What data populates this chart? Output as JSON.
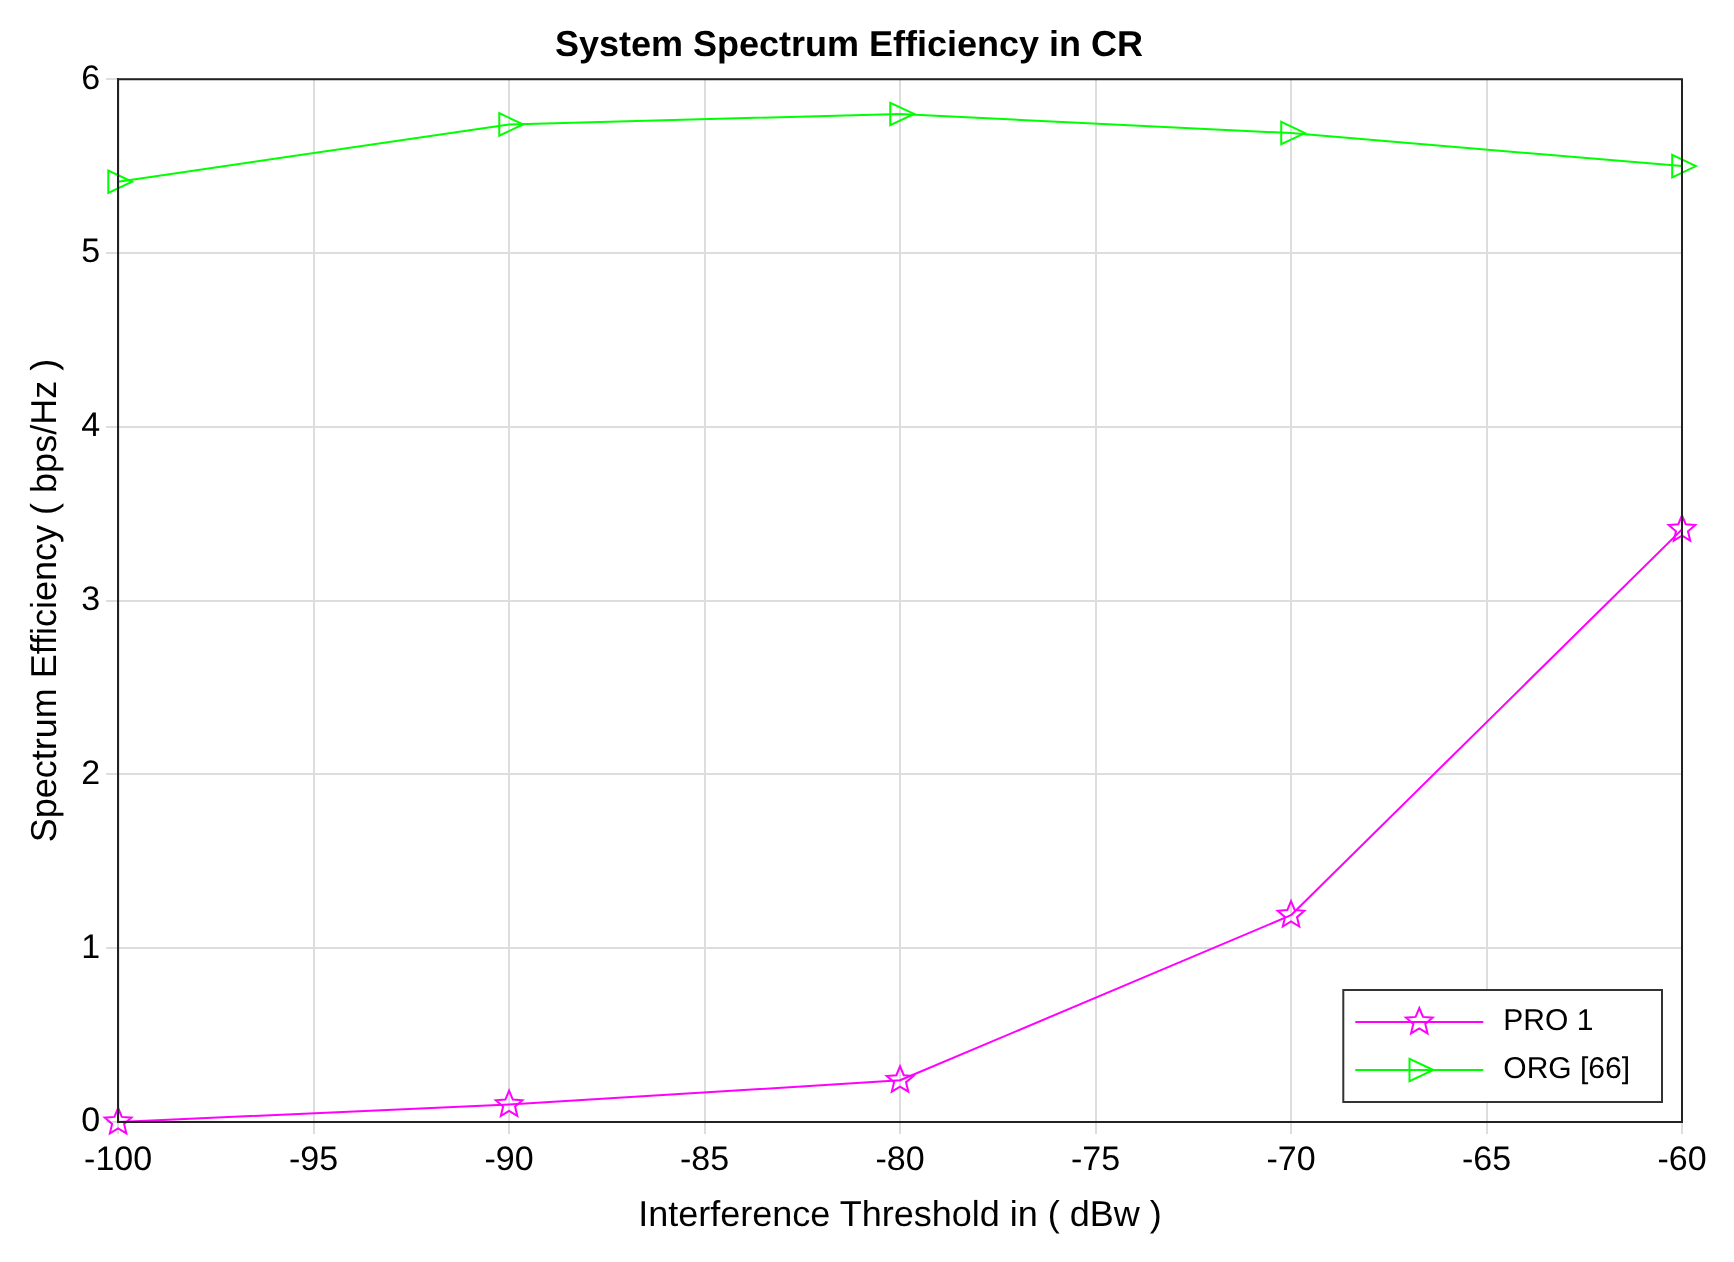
{
  "chart_data": {
    "type": "line",
    "title": "System Spectrum Efficiency in CR",
    "xlabel": "Interference Threshold in ( dBw )",
    "ylabel": "Spectrum Efficiency ( bps/Hz )",
    "x": [
      -100,
      -90,
      -80,
      -70,
      -60
    ],
    "series": [
      {
        "name": "PRO 1",
        "color": "#ff00ff",
        "marker": "star",
        "values": [
          0,
          0.1,
          0.24,
          1.19,
          3.41
        ]
      },
      {
        "name": "ORG [66]",
        "color": "#00ff00",
        "marker": "triangle",
        "values": [
          5.41,
          5.74,
          5.8,
          5.69,
          5.5
        ]
      }
    ],
    "xlim": [
      -100,
      -60
    ],
    "xticks": [
      -100,
      -95,
      -90,
      -85,
      -80,
      -75,
      -70,
      -65,
      -60
    ],
    "ylim": [
      0,
      6
    ],
    "yticks": [
      0,
      1,
      2,
      3,
      4,
      5,
      6
    ],
    "grid": true,
    "legend": "bottom right",
    "line_style": "solid"
  }
}
